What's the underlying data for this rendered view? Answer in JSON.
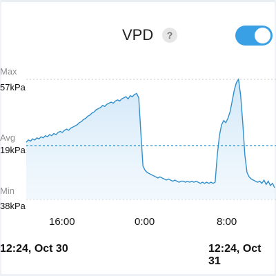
{
  "header": {
    "title": "VPD",
    "help_icon": "?",
    "toggle_state": "on",
    "toggle_color": "#3aa0e6"
  },
  "chart_data": {
    "type": "area",
    "title": "VPD",
    "color": "#2f8ecb",
    "fill": "#d4eaf8",
    "ref_lines": [
      {
        "label": "Max",
        "value_label": "57kPa"
      },
      {
        "label": "Avg",
        "value_label": "19kPa"
      },
      {
        "label": "Min",
        "value_label": "38kPa"
      }
    ],
    "x_ticks": [
      "16:00",
      "0:00",
      "8:00"
    ],
    "time_range": {
      "start": "12:24, Oct 30",
      "end": "12:24, Oct 31"
    },
    "series": [
      {
        "values": [
          0.42,
          0.44,
          0.43,
          0.45,
          0.44,
          0.46,
          0.45,
          0.47,
          0.46,
          0.48,
          0.47,
          0.49,
          0.48,
          0.5,
          0.49,
          0.51,
          0.52,
          0.51,
          0.53,
          0.54,
          0.53,
          0.55,
          0.56,
          0.57,
          0.58,
          0.6,
          0.61,
          0.63,
          0.64,
          0.66,
          0.67,
          0.69,
          0.7,
          0.72,
          0.73,
          0.74,
          0.76,
          0.75,
          0.77,
          0.78,
          0.79,
          0.78,
          0.8,
          0.81,
          0.8,
          0.82,
          0.83,
          0.84,
          0.82,
          0.85,
          0.84,
          0.86,
          0.87,
          0.83,
          0.5,
          0.2,
          0.16,
          0.14,
          0.13,
          0.12,
          0.11,
          0.1,
          0.09,
          0.1,
          0.09,
          0.08,
          0.07,
          0.08,
          0.07,
          0.06,
          0.07,
          0.06,
          0.05,
          0.06,
          0.06,
          0.05,
          0.06,
          0.05,
          0.06,
          0.05,
          0.06,
          0.05,
          0.04,
          0.05,
          0.04,
          0.05,
          0.04,
          0.05,
          0.04,
          0.05,
          0.3,
          0.48,
          0.58,
          0.62,
          0.6,
          0.64,
          0.7,
          0.8,
          0.9,
          0.97,
          1.0,
          0.85,
          0.6,
          0.3,
          0.14,
          0.1,
          0.08,
          0.07,
          0.06,
          0.05,
          0.06,
          0.04,
          0.07,
          0.03,
          0.06,
          0.02,
          0.04,
          0.0
        ]
      }
    ]
  }
}
